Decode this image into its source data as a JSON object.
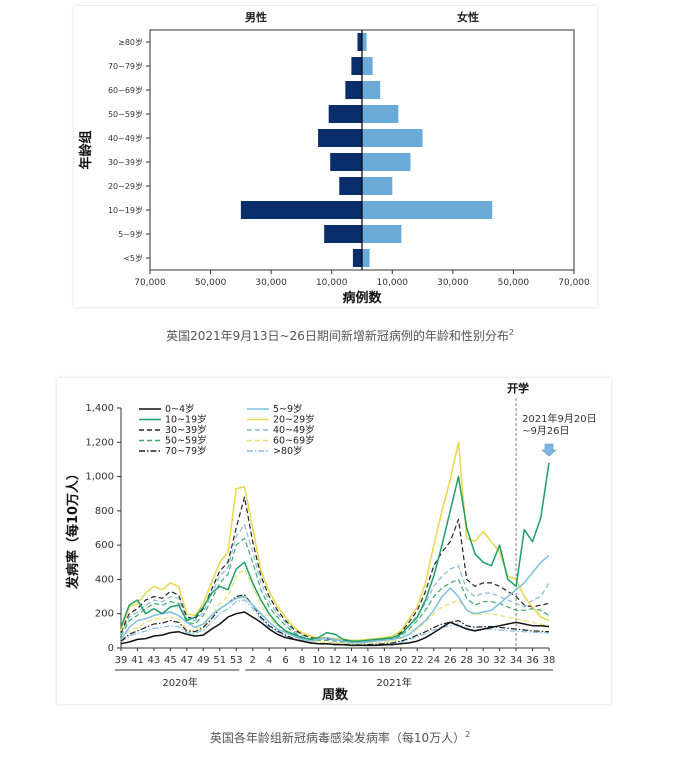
{
  "chart_data": [
    {
      "type": "bar",
      "subtype": "population-pyramid",
      "title": "",
      "ylabel": "年龄组",
      "xlabel": "病例数",
      "categories": [
        "≥80岁",
        "70~79岁",
        "60~69岁",
        "50~59岁",
        "40~49岁",
        "30~39岁",
        "20~29岁",
        "10~19岁",
        "5~9岁",
        "<5岁"
      ],
      "series": [
        {
          "name": "男性",
          "color": "#0a2d6b",
          "values": [
            1500,
            3500,
            5500,
            11000,
            14500,
            10500,
            7500,
            40000,
            12500,
            3000
          ]
        },
        {
          "name": "女性",
          "color": "#6aaad9",
          "values": [
            1500,
            3500,
            6000,
            12000,
            20000,
            16000,
            10000,
            43000,
            13000,
            2500
          ]
        }
      ],
      "xlim": [
        -70000,
        70000
      ],
      "xticks": [
        -70000,
        -50000,
        -30000,
        -10000,
        10000,
        30000,
        50000,
        70000
      ],
      "xtick_labels": [
        "70,000",
        "50,000",
        "30,000",
        "10,000",
        "10,000",
        "30,000",
        "50,000",
        "70,000"
      ]
    },
    {
      "type": "line",
      "title": "",
      "ylabel": "发病率（每10万人）",
      "xlabel": "周数",
      "ylim": [
        0,
        1400
      ],
      "yticks": [
        0,
        200,
        400,
        600,
        800,
        1000,
        1200,
        1400
      ],
      "ytick_labels": [
        "0",
        "200",
        "400",
        "600",
        "800",
        "1,000",
        "1,200",
        "1,400"
      ],
      "x_weeks": [
        39,
        40,
        41,
        42,
        43,
        44,
        45,
        46,
        47,
        48,
        49,
        50,
        51,
        52,
        53,
        1,
        2,
        3,
        4,
        5,
        6,
        7,
        8,
        9,
        10,
        11,
        12,
        13,
        14,
        15,
        16,
        17,
        18,
        19,
        20,
        21,
        22,
        23,
        24,
        25,
        26,
        27,
        28,
        29,
        30,
        31,
        32,
        33,
        34,
        35,
        36,
        37,
        38
      ],
      "xtick_labels": [
        "39",
        "41",
        "43",
        "45",
        "47",
        "49",
        "51",
        "53",
        "2",
        "4",
        "6",
        "8",
        "10",
        "12",
        "14",
        "16",
        "18",
        "20",
        "22",
        "24",
        "26",
        "28",
        "30",
        "32",
        "34",
        "36",
        "38"
      ],
      "year_labels": [
        "2020年",
        "2021年"
      ],
      "annotation_school": "开学",
      "annotation_week": "2021年9月20日~9月26日",
      "series": [
        {
          "name": "0~4岁",
          "color": "#111111",
          "dash": "solid",
          "values": [
            25,
            35,
            50,
            55,
            70,
            75,
            90,
            95,
            80,
            70,
            75,
            110,
            140,
            180,
            200,
            210,
            180,
            150,
            110,
            80,
            60,
            50,
            40,
            30,
            25,
            25,
            20,
            20,
            15,
            15,
            15,
            15,
            18,
            20,
            25,
            30,
            40,
            60,
            90,
            120,
            150,
            130,
            110,
            100,
            110,
            120,
            130,
            140,
            150,
            140,
            130,
            130,
            125
          ]
        },
        {
          "name": "5~9岁",
          "color": "#7fbfe0",
          "dash": "solid",
          "values": [
            50,
            120,
            160,
            170,
            190,
            200,
            210,
            190,
            150,
            120,
            140,
            190,
            230,
            260,
            290,
            300,
            250,
            200,
            150,
            110,
            90,
            70,
            50,
            40,
            50,
            60,
            50,
            40,
            30,
            30,
            35,
            40,
            45,
            50,
            60,
            80,
            120,
            160,
            220,
            300,
            350,
            300,
            220,
            200,
            210,
            220,
            260,
            300,
            340,
            380,
            440,
            500,
            540
          ]
        },
        {
          "name": "10~19岁",
          "color": "#1e9e6a",
          "dash": "solid",
          "values": [
            120,
            250,
            280,
            200,
            230,
            200,
            240,
            250,
            160,
            180,
            240,
            320,
            360,
            340,
            460,
            500,
            380,
            280,
            200,
            140,
            100,
            80,
            60,
            50,
            60,
            90,
            80,
            50,
            40,
            40,
            45,
            50,
            55,
            60,
            80,
            130,
            180,
            280,
            420,
            600,
            800,
            1000,
            700,
            550,
            500,
            480,
            600,
            400,
            360,
            690,
            620,
            760,
            1080
          ]
        },
        {
          "name": "20~29岁",
          "color": "#e8d84a",
          "dash": "solid",
          "values": [
            100,
            240,
            260,
            320,
            360,
            340,
            380,
            360,
            200,
            190,
            260,
            380,
            500,
            560,
            930,
            940,
            700,
            450,
            330,
            240,
            180,
            120,
            90,
            70,
            60,
            60,
            55,
            50,
            45,
            45,
            50,
            55,
            60,
            70,
            100,
            170,
            240,
            380,
            600,
            800,
            980,
            1200,
            640,
            620,
            680,
            620,
            560,
            420,
            400,
            300,
            240,
            180,
            160
          ]
        },
        {
          "name": "30~39岁",
          "color": "#222222",
          "dash": "dashed",
          "values": [
            90,
            200,
            230,
            280,
            300,
            290,
            330,
            310,
            180,
            170,
            230,
            340,
            450,
            500,
            700,
            880,
            620,
            420,
            300,
            220,
            160,
            110,
            80,
            60,
            55,
            55,
            50,
            45,
            40,
            40,
            45,
            50,
            55,
            60,
            90,
            150,
            220,
            330,
            480,
            560,
            620,
            750,
            400,
            360,
            380,
            380,
            360,
            330,
            300,
            250,
            240,
            250,
            260
          ]
        },
        {
          "name": "40~49岁",
          "color": "#8ab8dc",
          "dash": "dashed",
          "values": [
            80,
            180,
            210,
            250,
            280,
            270,
            300,
            290,
            170,
            160,
            210,
            310,
            420,
            470,
            650,
            720,
            560,
            380,
            270,
            200,
            150,
            100,
            75,
            55,
            50,
            50,
            45,
            40,
            35,
            35,
            40,
            45,
            50,
            55,
            80,
            130,
            190,
            260,
            360,
            420,
            460,
            480,
            340,
            300,
            320,
            320,
            300,
            280,
            260,
            240,
            280,
            300,
            380
          ]
        },
        {
          "name": "50~59岁",
          "color": "#3aaa6a",
          "dash": "dashed",
          "values": [
            70,
            160,
            190,
            230,
            260,
            250,
            270,
            260,
            150,
            140,
            190,
            280,
            380,
            430,
            600,
            640,
            500,
            340,
            240,
            180,
            130,
            90,
            65,
            50,
            45,
            45,
            40,
            35,
            30,
            30,
            35,
            40,
            45,
            50,
            70,
            110,
            160,
            220,
            300,
            350,
            380,
            400,
            290,
            250,
            270,
            270,
            260,
            240,
            220,
            220,
            230,
            220,
            190
          ]
        },
        {
          "name": "60~69岁",
          "color": "#e8e070",
          "dash": "dashed",
          "values": [
            50,
            100,
            120,
            150,
            170,
            170,
            180,
            170,
            110,
            100,
            130,
            190,
            260,
            300,
            420,
            460,
            360,
            250,
            180,
            130,
            95,
            70,
            50,
            40,
            35,
            35,
            30,
            28,
            25,
            25,
            28,
            30,
            35,
            40,
            55,
            80,
            110,
            150,
            200,
            240,
            260,
            280,
            220,
            190,
            200,
            200,
            190,
            180,
            170,
            160,
            150,
            140,
            130
          ]
        },
        {
          "name": "70~79岁",
          "color": "#222222",
          "dash": "dashdot",
          "values": [
            40,
            80,
            100,
            120,
            140,
            145,
            160,
            150,
            100,
            95,
            120,
            170,
            230,
            260,
            300,
            310,
            250,
            180,
            130,
            100,
            75,
            55,
            40,
            30,
            25,
            25,
            22,
            20,
            18,
            18,
            20,
            22,
            25,
            30,
            40,
            55,
            75,
            95,
            120,
            140,
            150,
            160,
            130,
            120,
            125,
            125,
            120,
            115,
            110,
            105,
            100,
            98,
            95
          ]
        },
        {
          "name": ">80岁",
          "color": "#7fbfe0",
          "dash": "dashdot",
          "values": [
            35,
            70,
            85,
            100,
            115,
            120,
            130,
            125,
            90,
            85,
            105,
            150,
            200,
            230,
            270,
            280,
            230,
            170,
            120,
            95,
            70,
            50,
            38,
            28,
            22,
            22,
            20,
            18,
            16,
            16,
            18,
            20,
            22,
            26,
            35,
            50,
            65,
            85,
            105,
            120,
            130,
            140,
            115,
            105,
            110,
            110,
            105,
            100,
            98,
            95,
            92,
            90,
            88
          ]
        }
      ]
    }
  ],
  "captions": {
    "chart1": "英国2021年9月13日~26日期间新增新冠病例的年龄和性别分布",
    "chart1_ref": "2",
    "chart2": "英国各年龄组新冠病毒感染发病率（每10万人）",
    "chart2_ref": "2"
  }
}
